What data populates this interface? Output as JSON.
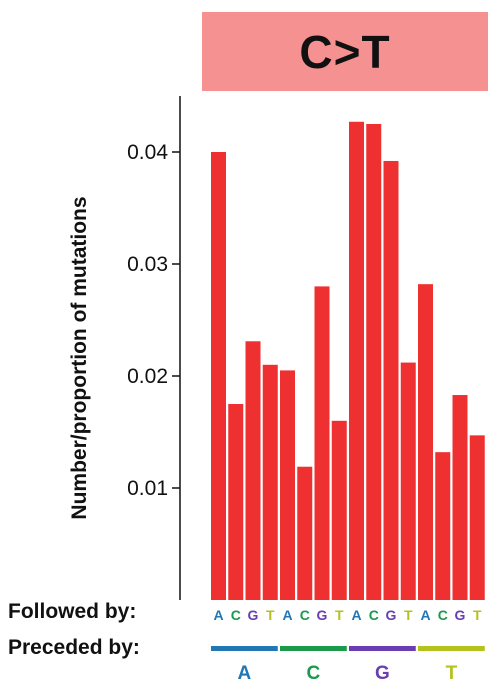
{
  "chart_data": {
    "type": "bar",
    "title": "C>T",
    "ylabel": "Number/proportion of mutations",
    "yticks": [
      "0.04",
      "0.03",
      "0.02",
      "0.01"
    ],
    "ylim": [
      0,
      0.047
    ],
    "categories": [
      "A-A",
      "A-C",
      "A-G",
      "A-T",
      "C-A",
      "C-C",
      "C-G",
      "C-T",
      "G-A",
      "G-C",
      "G-G",
      "G-T",
      "T-A",
      "T-C",
      "T-G",
      "T-T"
    ],
    "values": [
      0.04,
      0.0175,
      0.0231,
      0.021,
      0.0205,
      0.0119,
      0.028,
      0.016,
      0.0427,
      0.0425,
      0.0392,
      0.0212,
      0.0282,
      0.0132,
      0.0183,
      0.0147
    ],
    "bar_color": "#ee3130",
    "followed_by_label": "Followed by:",
    "preceded_by_label": "Preceded by:",
    "followed_bases": [
      "A",
      "C",
      "G",
      "T",
      "A",
      "C",
      "G",
      "T",
      "A",
      "C",
      "G",
      "T",
      "A",
      "C",
      "G",
      "T"
    ],
    "preceded_groups": [
      {
        "base": "A",
        "color": "#1f77b4"
      },
      {
        "base": "C",
        "color": "#1a9a4a"
      },
      {
        "base": "G",
        "color": "#6a3db0"
      },
      {
        "base": "T",
        "color": "#b5c21d"
      }
    ],
    "base_colors": {
      "A": "#1f77b4",
      "C": "#1a9a4a",
      "G": "#6a3db0",
      "T": "#b5c21d"
    },
    "grid": false,
    "legend": "none"
  }
}
